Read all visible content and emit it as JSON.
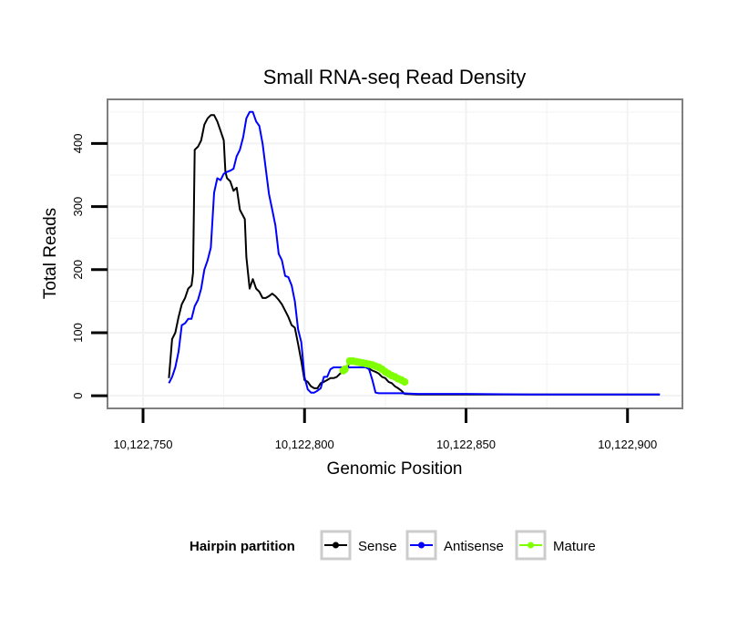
{
  "chart_data": {
    "type": "line",
    "title": "Small RNA-seq Read Density",
    "xlabel": "Genomic Position",
    "ylabel": "Total Reads",
    "xlim": [
      10122739,
      10122917
    ],
    "ylim": [
      -20,
      470
    ],
    "x_ticks": [
      10122750,
      10122800,
      10122850,
      10122900
    ],
    "x_tick_labels": [
      "10,122,750",
      "10,122,800",
      "10,122,850",
      "10,122,900"
    ],
    "y_ticks": [
      0,
      100,
      200,
      300,
      400
    ],
    "y_tick_labels": [
      "0",
      "100",
      "200",
      "300",
      "400"
    ],
    "grid": true,
    "legend": {
      "title": "Hairpin partition",
      "position": "bottom",
      "entries": [
        "Sense",
        "Antisense",
        "Mature"
      ]
    },
    "series": [
      {
        "name": "Sense",
        "color": "#000000",
        "points": [
          [
            10122758,
            28
          ],
          [
            10122759,
            90
          ],
          [
            10122760,
            100
          ],
          [
            10122761,
            125
          ],
          [
            10122762,
            145
          ],
          [
            10122763,
            155
          ],
          [
            10122764,
            170
          ],
          [
            10122765,
            175
          ],
          [
            10122765.5,
            195
          ],
          [
            10122766,
            390
          ],
          [
            10122767,
            395
          ],
          [
            10122768,
            405
          ],
          [
            10122769,
            430
          ],
          [
            10122770,
            440
          ],
          [
            10122771,
            445
          ],
          [
            10122772,
            445
          ],
          [
            10122773,
            435
          ],
          [
            10122774,
            420
          ],
          [
            10122775,
            405
          ],
          [
            10122775.5,
            355
          ],
          [
            10122776,
            345
          ],
          [
            10122777,
            340
          ],
          [
            10122778,
            325
          ],
          [
            10122779,
            330
          ],
          [
            10122780,
            295
          ],
          [
            10122781,
            285
          ],
          [
            10122781.5,
            280
          ],
          [
            10122782,
            220
          ],
          [
            10122783,
            170
          ],
          [
            10122784,
            185
          ],
          [
            10122785,
            170
          ],
          [
            10122786,
            165
          ],
          [
            10122787,
            155
          ],
          [
            10122788,
            155
          ],
          [
            10122789,
            158
          ],
          [
            10122790,
            162
          ],
          [
            10122791,
            158
          ],
          [
            10122792,
            152
          ],
          [
            10122793,
            145
          ],
          [
            10122794,
            135
          ],
          [
            10122795,
            125
          ],
          [
            10122796,
            112
          ],
          [
            10122797,
            108
          ],
          [
            10122798,
            82
          ],
          [
            10122799,
            55
          ],
          [
            10122800,
            25
          ],
          [
            10122801,
            22
          ],
          [
            10122802,
            15
          ],
          [
            10122803,
            12
          ],
          [
            10122804,
            12
          ],
          [
            10122805,
            20
          ],
          [
            10122806,
            22
          ],
          [
            10122807,
            25
          ],
          [
            10122808,
            28
          ],
          [
            10122809,
            28
          ],
          [
            10122810,
            30
          ],
          [
            10122811,
            35
          ],
          [
            10122812,
            38
          ],
          [
            10122813,
            40
          ],
          [
            10122814,
            55
          ],
          [
            10122815,
            52
          ],
          [
            10122816,
            50
          ],
          [
            10122817,
            50
          ],
          [
            10122818,
            48
          ],
          [
            10122819,
            45
          ],
          [
            10122820,
            43
          ],
          [
            10122821,
            40
          ],
          [
            10122822,
            38
          ],
          [
            10122823,
            35
          ],
          [
            10122824,
            30
          ],
          [
            10122825,
            28
          ],
          [
            10122826,
            22
          ],
          [
            10122827,
            20
          ],
          [
            10122828,
            15
          ],
          [
            10122829,
            12
          ],
          [
            10122830,
            8
          ],
          [
            10122831,
            3
          ],
          [
            10122835,
            2
          ],
          [
            10122850,
            2
          ],
          [
            10122870,
            2
          ],
          [
            10122890,
            2
          ],
          [
            10122910,
            2
          ]
        ]
      },
      {
        "name": "Antisense",
        "color": "#0000ff",
        "points": [
          [
            10122758,
            20
          ],
          [
            10122759,
            30
          ],
          [
            10122760,
            45
          ],
          [
            10122761,
            70
          ],
          [
            10122762,
            112
          ],
          [
            10122763,
            115
          ],
          [
            10122764,
            122
          ],
          [
            10122765,
            122
          ],
          [
            10122766,
            142
          ],
          [
            10122767,
            152
          ],
          [
            10122768,
            170
          ],
          [
            10122769,
            200
          ],
          [
            10122770,
            215
          ],
          [
            10122771,
            235
          ],
          [
            10122772,
            322
          ],
          [
            10122773,
            345
          ],
          [
            10122774,
            342
          ],
          [
            10122775,
            352
          ],
          [
            10122776,
            355
          ],
          [
            10122777,
            357
          ],
          [
            10122778,
            360
          ],
          [
            10122779,
            380
          ],
          [
            10122780,
            390
          ],
          [
            10122781,
            410
          ],
          [
            10122782,
            440
          ],
          [
            10122783,
            450
          ],
          [
            10122784,
            450
          ],
          [
            10122785,
            435
          ],
          [
            10122786,
            428
          ],
          [
            10122787,
            400
          ],
          [
            10122788,
            360
          ],
          [
            10122789,
            320
          ],
          [
            10122790,
            295
          ],
          [
            10122791,
            270
          ],
          [
            10122792,
            225
          ],
          [
            10122793,
            215
          ],
          [
            10122794,
            190
          ],
          [
            10122795,
            188
          ],
          [
            10122796,
            175
          ],
          [
            10122797,
            150
          ],
          [
            10122798,
            105
          ],
          [
            10122799,
            85
          ],
          [
            10122800,
            30
          ],
          [
            10122801,
            10
          ],
          [
            10122802,
            5
          ],
          [
            10122803,
            5
          ],
          [
            10122804,
            8
          ],
          [
            10122805,
            12
          ],
          [
            10122806,
            30
          ],
          [
            10122807,
            30
          ],
          [
            10122808,
            42
          ],
          [
            10122809,
            45
          ],
          [
            10122810,
            45
          ],
          [
            10122811,
            45
          ],
          [
            10122812,
            45
          ],
          [
            10122813,
            45
          ],
          [
            10122814,
            45
          ],
          [
            10122815,
            45
          ],
          [
            10122816,
            45
          ],
          [
            10122817,
            45
          ],
          [
            10122818,
            45
          ],
          [
            10122819,
            45
          ],
          [
            10122820,
            42
          ],
          [
            10122821,
            25
          ],
          [
            10122822,
            5
          ],
          [
            10122823,
            4
          ],
          [
            10122830,
            4
          ],
          [
            10122835,
            3
          ],
          [
            10122840,
            3
          ],
          [
            10122850,
            3
          ],
          [
            10122870,
            2
          ],
          [
            10122910,
            2
          ]
        ]
      },
      {
        "name": "Mature",
        "color": "#7fff00",
        "points": [
          [
            10122812,
            40
          ],
          [
            10122812.5,
            42
          ],
          [
            10122814,
            55
          ],
          [
            10122815,
            55
          ],
          [
            10122816,
            54
          ],
          [
            10122817,
            53
          ],
          [
            10122818,
            52
          ],
          [
            10122819,
            51
          ],
          [
            10122820,
            50
          ],
          [
            10122821,
            49
          ],
          [
            10122822,
            47
          ],
          [
            10122823,
            45
          ],
          [
            10122824,
            42
          ],
          [
            10122825,
            38
          ],
          [
            10122826,
            35
          ],
          [
            10122827,
            32
          ],
          [
            10122828,
            30
          ],
          [
            10122829,
            27
          ],
          [
            10122830,
            25
          ],
          [
            10122831,
            22
          ]
        ]
      }
    ]
  }
}
